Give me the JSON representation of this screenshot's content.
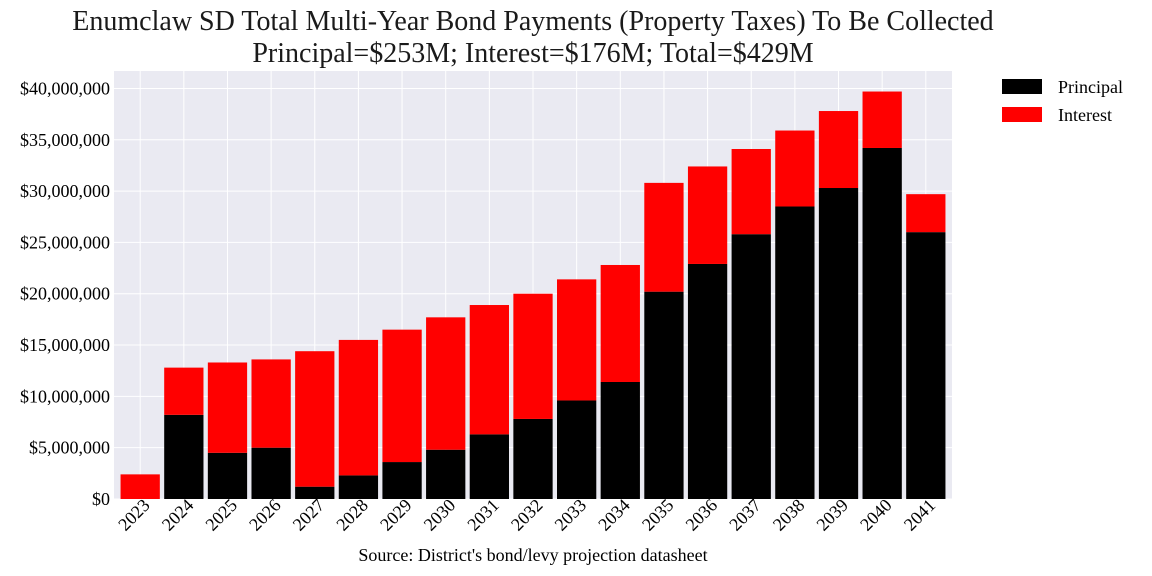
{
  "chart_data": {
    "type": "bar",
    "stacked": true,
    "title": "Enumclaw SD Total Multi-Year Bond Payments (Property Taxes) To Be Collected",
    "subtitle": "Principal=$253M; Interest=$176M; Total=$429M",
    "xlabel": "Source: District's bond/levy projection datasheet",
    "ylabel": "",
    "ylim": [
      0,
      41700000
    ],
    "yticks": [
      0,
      5000000,
      10000000,
      15000000,
      20000000,
      25000000,
      30000000,
      35000000,
      40000000
    ],
    "ytick_labels": [
      "$0",
      "$5,000,000",
      "$10,000,000",
      "$15,000,000",
      "$20,000,000",
      "$25,000,000",
      "$30,000,000",
      "$35,000,000",
      "$40,000,000"
    ],
    "grid": true,
    "legend_position": "outside-top-right",
    "categories": [
      "2023",
      "2024",
      "2025",
      "2026",
      "2027",
      "2028",
      "2029",
      "2030",
      "2031",
      "2032",
      "2033",
      "2034",
      "2035",
      "2036",
      "2037",
      "2038",
      "2039",
      "2040",
      "2041"
    ],
    "series": [
      {
        "name": "Principal",
        "color": "#000000",
        "values": [
          0,
          8200000,
          4500000,
          5000000,
          1200000,
          2300000,
          3600000,
          4800000,
          6300000,
          7800000,
          9600000,
          11400000,
          20200000,
          22900000,
          25800000,
          28500000,
          30300000,
          34200000,
          26000000
        ]
      },
      {
        "name": "Interest",
        "color": "#ff0000",
        "values": [
          2400000,
          4600000,
          8800000,
          8600000,
          13200000,
          13200000,
          12900000,
          12900000,
          12600000,
          12200000,
          11800000,
          11400000,
          10600000,
          9500000,
          8300000,
          7400000,
          7500000,
          5500000,
          3700000
        ]
      }
    ]
  }
}
